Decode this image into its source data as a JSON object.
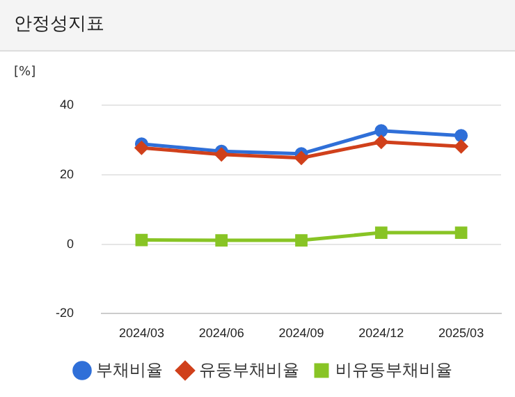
{
  "chart_data": {
    "type": "line",
    "title": "안정성지표",
    "ylabel": "[%]",
    "categories": [
      "2024/03",
      "2024/06",
      "2024/09",
      "2024/12",
      "2025/03"
    ],
    "series": [
      {
        "name": "부채비율",
        "color": "#2f6fd8",
        "marker": "circle",
        "values": [
          28.8,
          26.7,
          26.0,
          32.6,
          31.2
        ]
      },
      {
        "name": "유동부채비율",
        "color": "#d0401b",
        "marker": "diamond",
        "values": [
          27.7,
          25.8,
          24.8,
          29.4,
          28.1
        ]
      },
      {
        "name": "비유동부채비율",
        "color": "#88c425",
        "marker": "square",
        "values": [
          1.2,
          1.1,
          1.1,
          3.3,
          3.3
        ]
      }
    ],
    "ylim": [
      -20,
      40
    ],
    "yticks": [
      -20,
      0,
      20,
      40
    ],
    "grid": "y",
    "legend": "bottom"
  }
}
